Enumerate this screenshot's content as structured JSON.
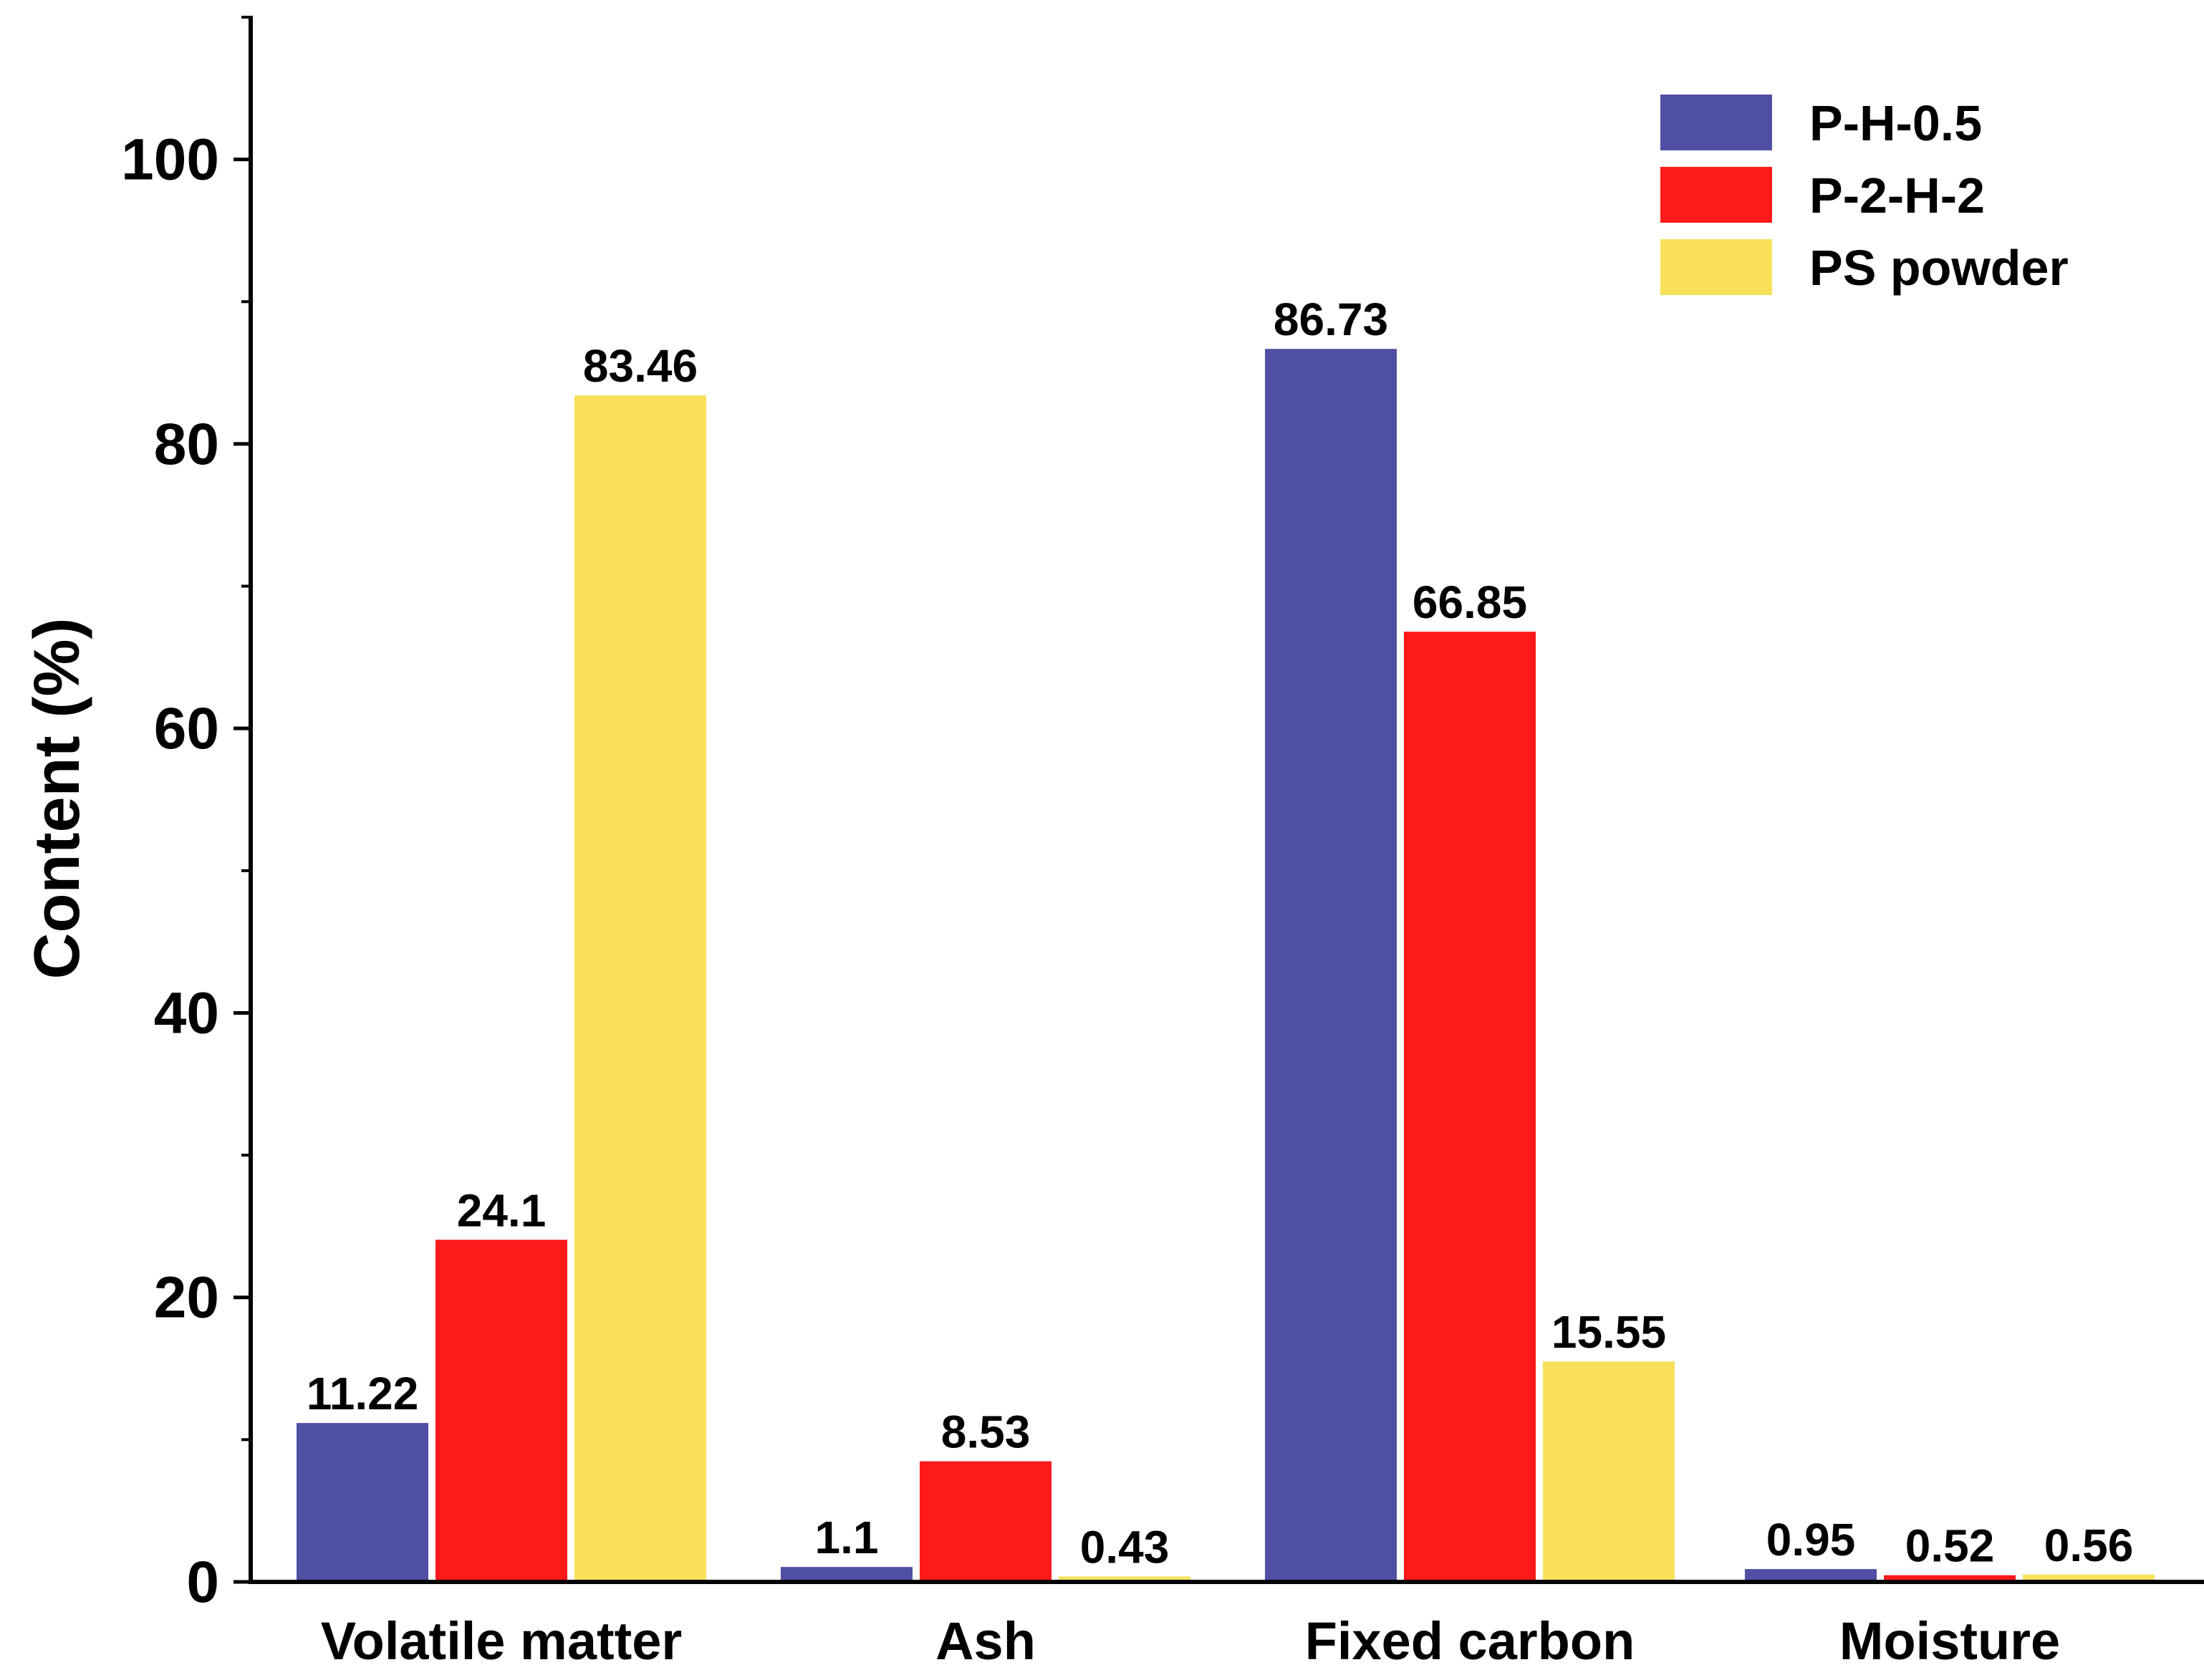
{
  "chart_data": {
    "type": "bar",
    "title": "",
    "xlabel": "",
    "ylabel": "Content (%)",
    "ylim": [
      0,
      110
    ],
    "yticks": [
      0,
      20,
      40,
      60,
      80,
      100
    ],
    "tick_labels": [
      "0",
      "20",
      "40",
      "60",
      "80",
      "100"
    ],
    "grid": false,
    "legend_position": "top-right",
    "categories": [
      "Volatile matter",
      "Ash",
      "Fixed carbon",
      "Moisture"
    ],
    "series": [
      {
        "name": "P-H-0.5",
        "color": "#4f4fa3",
        "values": [
          11.22,
          1.1,
          86.73,
          0.95
        ],
        "labels": [
          "11.22",
          "1.1",
          "86.73",
          "0.95"
        ]
      },
      {
        "name": "P-2-H-2",
        "color": "#ff1a1a",
        "values": [
          24.1,
          8.53,
          66.85,
          0.52
        ],
        "labels": [
          "24.1",
          "8.53",
          "66.85",
          "0.52"
        ]
      },
      {
        "name": "PS powder",
        "color": "#f7e15a",
        "values": [
          83.46,
          0.43,
          15.55,
          0.56
        ],
        "labels": [
          "83.46",
          "0.43",
          "15.55",
          "0.56"
        ]
      }
    ]
  }
}
